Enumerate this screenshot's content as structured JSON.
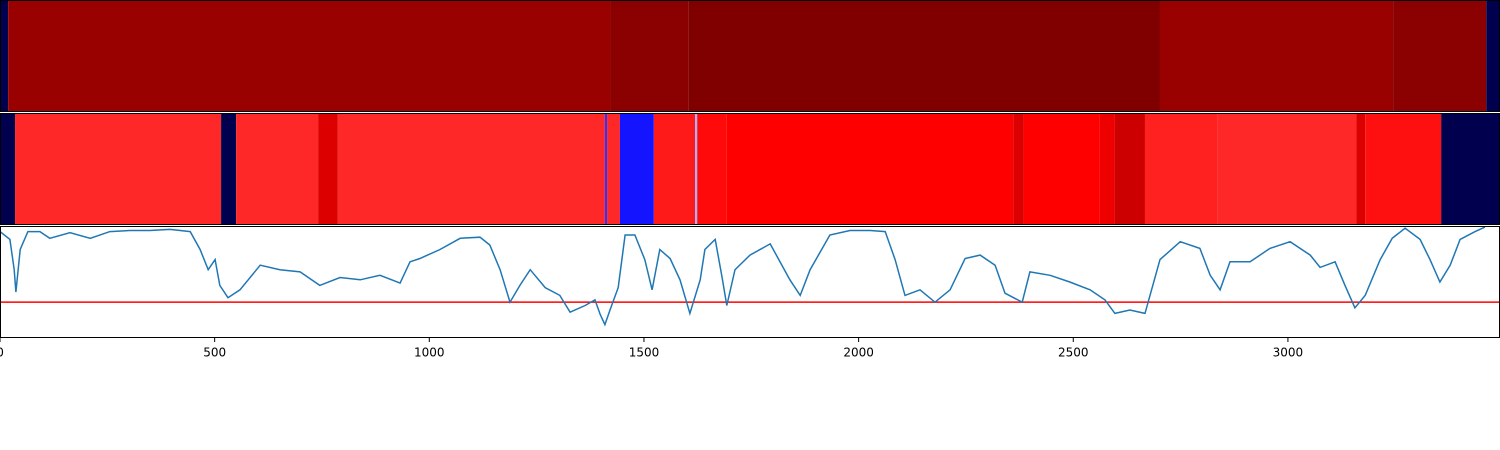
{
  "chart_data": [
    {
      "type": "segments",
      "xlim": [
        0,
        3494
      ],
      "segments": [
        {
          "start": 0,
          "end": 19,
          "color": "#00004e"
        },
        {
          "start": 19,
          "end": 1421,
          "color": "#990000"
        },
        {
          "start": 1421,
          "end": 1603,
          "color": "#8b0000"
        },
        {
          "start": 1603,
          "end": 2702,
          "color": "#800000"
        },
        {
          "start": 2702,
          "end": 3245,
          "color": "#990000"
        },
        {
          "start": 3245,
          "end": 3462,
          "color": "#8b0000"
        },
        {
          "start": 3462,
          "end": 3494,
          "color": "#00004e"
        }
      ]
    },
    {
      "type": "segments",
      "xlim": [
        0,
        3494
      ],
      "segments": [
        {
          "start": 0,
          "end": 35,
          "color": "#00004e"
        },
        {
          "start": 35,
          "end": 515,
          "color": "#ff2828"
        },
        {
          "start": 515,
          "end": 550,
          "color": "#00004e"
        },
        {
          "start": 550,
          "end": 741,
          "color": "#ff2828"
        },
        {
          "start": 741,
          "end": 787,
          "color": "#dd0000"
        },
        {
          "start": 787,
          "end": 1409,
          "color": "#ff2828"
        },
        {
          "start": 1409,
          "end": 1414,
          "color": "#3030ff"
        },
        {
          "start": 1414,
          "end": 1444,
          "color": "#ff2828"
        },
        {
          "start": 1444,
          "end": 1523,
          "color": "#1414ff"
        },
        {
          "start": 1523,
          "end": 1619,
          "color": "#ff1a1a"
        },
        {
          "start": 1619,
          "end": 1624,
          "color": "#aab0ff"
        },
        {
          "start": 1624,
          "end": 1693,
          "color": "#ff0a0a"
        },
        {
          "start": 1693,
          "end": 2360,
          "color": "#ff0000"
        },
        {
          "start": 2360,
          "end": 2385,
          "color": "#dd0000"
        },
        {
          "start": 2385,
          "end": 2562,
          "color": "#ff0000"
        },
        {
          "start": 2562,
          "end": 2597,
          "color": "#ee0000"
        },
        {
          "start": 2597,
          "end": 2667,
          "color": "#cc0000"
        },
        {
          "start": 2667,
          "end": 2835,
          "color": "#ff2020"
        },
        {
          "start": 2835,
          "end": 3159,
          "color": "#ff2828"
        },
        {
          "start": 3159,
          "end": 3180,
          "color": "#dd0000"
        },
        {
          "start": 3180,
          "end": 3357,
          "color": "#ff1010"
        },
        {
          "start": 3357,
          "end": 3494,
          "color": "#00004e"
        }
      ]
    },
    {
      "type": "line",
      "color": "#1f77b4",
      "xlim": [
        0,
        3494
      ],
      "ylim": [
        0,
        1
      ],
      "xticks": [
        0,
        500,
        1000,
        1500,
        2000,
        2500,
        3000
      ],
      "threshold": 0.32,
      "threshold_color": "#ff0000",
      "x": [
        0,
        23,
        33,
        37,
        47,
        65,
        93,
        116,
        163,
        210,
        256,
        303,
        349,
        396,
        443,
        466,
        485,
        501,
        512,
        531,
        559,
        606,
        652,
        699,
        745,
        792,
        839,
        885,
        932,
        955,
        978,
        1025,
        1072,
        1118,
        1141,
        1165,
        1188,
        1211,
        1235,
        1270,
        1304,
        1328,
        1363,
        1386,
        1398,
        1409,
        1421,
        1440,
        1456,
        1479,
        1502,
        1519,
        1537,
        1561,
        1584,
        1607,
        1631,
        1642,
        1666,
        1682,
        1693,
        1712,
        1747,
        1794,
        1840,
        1864,
        1887,
        1933,
        1980,
        2027,
        2062,
        2085,
        2108,
        2143,
        2178,
        2213,
        2248,
        2283,
        2318,
        2341,
        2381,
        2399,
        2446,
        2492,
        2539,
        2574,
        2597,
        2632,
        2667,
        2702,
        2749,
        2795,
        2819,
        2842,
        2865,
        2912,
        2958,
        3005,
        3052,
        3075,
        3110,
        3133,
        3156,
        3180,
        3215,
        3243,
        3273,
        3308,
        3331,
        3354,
        3378,
        3401,
        3436,
        3459
      ],
      "values": [
        0.95,
        0.88,
        0.61,
        0.41,
        0.79,
        0.95,
        0.95,
        0.89,
        0.94,
        0.89,
        0.95,
        0.96,
        0.96,
        0.97,
        0.95,
        0.79,
        0.61,
        0.7,
        0.47,
        0.36,
        0.43,
        0.65,
        0.61,
        0.59,
        0.47,
        0.54,
        0.52,
        0.56,
        0.49,
        0.68,
        0.71,
        0.79,
        0.89,
        0.9,
        0.83,
        0.61,
        0.32,
        0.47,
        0.61,
        0.45,
        0.38,
        0.23,
        0.29,
        0.34,
        0.21,
        0.12,
        0.25,
        0.45,
        0.92,
        0.92,
        0.7,
        0.43,
        0.79,
        0.71,
        0.52,
        0.22,
        0.52,
        0.79,
        0.88,
        0.54,
        0.29,
        0.61,
        0.74,
        0.84,
        0.52,
        0.38,
        0.61,
        0.92,
        0.96,
        0.96,
        0.95,
        0.7,
        0.38,
        0.43,
        0.32,
        0.43,
        0.71,
        0.74,
        0.65,
        0.4,
        0.32,
        0.59,
        0.56,
        0.5,
        0.43,
        0.34,
        0.22,
        0.25,
        0.22,
        0.7,
        0.86,
        0.8,
        0.56,
        0.43,
        0.68,
        0.68,
        0.8,
        0.86,
        0.74,
        0.63,
        0.68,
        0.47,
        0.27,
        0.38,
        0.7,
        0.89,
        0.98,
        0.88,
        0.7,
        0.5,
        0.65,
        0.88,
        0.95,
        0.99
      ]
    }
  ]
}
